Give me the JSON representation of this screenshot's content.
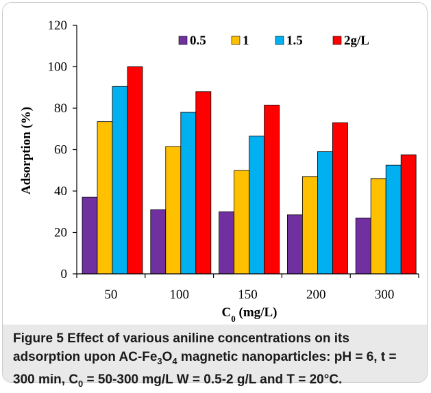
{
  "chart_data": {
    "type": "bar",
    "categories": [
      "50",
      "100",
      "150",
      "200",
      "300"
    ],
    "series": [
      {
        "name": "0.5",
        "color": "#7030a0",
        "values": [
          37,
          31,
          30,
          28.5,
          27
        ]
      },
      {
        "name": "1",
        "color": "#ffc000",
        "values": [
          73.5,
          61.5,
          50,
          47,
          46
        ]
      },
      {
        "name": "1.5",
        "color": "#00b0f0",
        "values": [
          90.5,
          78,
          66.5,
          59,
          52.5
        ]
      },
      {
        "name": "2g/L",
        "color": "#ff0000",
        "values": [
          100,
          88,
          81.5,
          73,
          57.5
        ]
      }
    ],
    "xlabel_main": "C",
    "xlabel_sub": "0",
    "xlabel_tail": " (mg/L)",
    "ylabel": "Adsorption (%)",
    "ylim": [
      0,
      120
    ],
    "yticks": [
      "0",
      "20",
      "40",
      "60",
      "80",
      "100",
      "120"
    ],
    "grid": false,
    "legend_position": "top"
  },
  "caption": {
    "figure_label": "Figure 5",
    "text_1": " Effect of various aniline concentrations on its adsorption upon AC-Fe",
    "sub_1": "3",
    "text_2": "O",
    "sub_2": "4",
    "text_3": " magnetic nanoparticles: pH = 6, t = 300 min, C",
    "sub_3": "0",
    "text_4": " = 50-300 mg/L W = 0.5-2 g/L and T = 20°C."
  }
}
